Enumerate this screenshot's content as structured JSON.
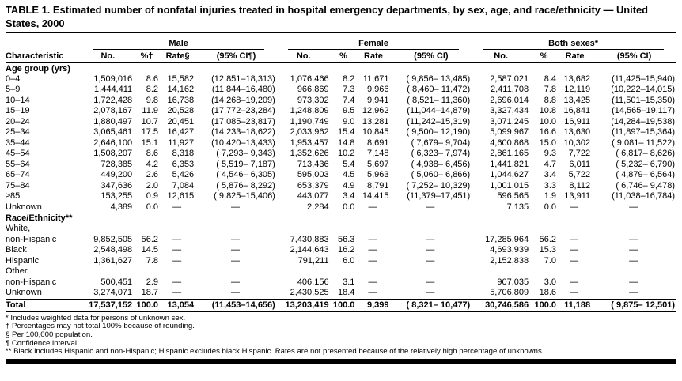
{
  "title": "TABLE 1. Estimated number of nonfatal injuries treated in hospital emergency departments, by sex, age, and race/ethnicity — United States, 2000",
  "columns": {
    "characteristic": "Characteristic",
    "groups": [
      {
        "label": "Male",
        "headers": [
          "No.",
          "%†",
          "Rate§",
          "(95% CI¶)"
        ]
      },
      {
        "label": "Female",
        "headers": [
          "No.",
          "%",
          "Rate",
          "(95% CI)"
        ]
      },
      {
        "label": "Both sexes*",
        "headers": [
          "No.",
          "%",
          "Rate",
          "(95% CI)"
        ]
      }
    ]
  },
  "sections": [
    {
      "label": "Age group (yrs)",
      "rows": [
        {
          "label": "0–4",
          "indent": 1,
          "cells": [
            "1,509,016",
            "8.6",
            "15,582",
            "(12,851–18,313)",
            "1,076,466",
            "8.2",
            "11,671",
            "( 9,856– 13,485)",
            "2,587,021",
            "8.4",
            "13,682",
            "(11,425–15,940)"
          ]
        },
        {
          "label": "5–9",
          "indent": 1,
          "cells": [
            "1,444,411",
            "8.2",
            "14,162",
            "(11,844–16,480)",
            "966,869",
            "7.3",
            "9,966",
            "( 8,460– 11,472)",
            "2,411,708",
            "7.8",
            "12,119",
            "(10,222–14,015)"
          ]
        },
        {
          "label": "10–14",
          "indent": 1,
          "cells": [
            "1,722,428",
            "9.8",
            "16,738",
            "(14,268–19,209)",
            "973,302",
            "7.4",
            "9,941",
            "( 8,521– 11,360)",
            "2,696,014",
            "8.8",
            "13,425",
            "(11,501–15,350)"
          ]
        },
        {
          "label": "15–19",
          "indent": 1,
          "cells": [
            "2,078,167",
            "11.9",
            "20,528",
            "(17,772–23,284)",
            "1,248,809",
            "9.5",
            "12,962",
            "(11,044–14,879)",
            "3,327,434",
            "10.8",
            "16,841",
            "(14,565–19,117)"
          ]
        },
        {
          "label": "20–24",
          "indent": 1,
          "cells": [
            "1,880,497",
            "10.7",
            "20,451",
            "(17,085–23,817)",
            "1,190,749",
            "9.0",
            "13,281",
            "(11,242–15,319)",
            "3,071,245",
            "10.0",
            "16,911",
            "(14,284–19,538)"
          ]
        },
        {
          "label": "25–34",
          "indent": 1,
          "cells": [
            "3,065,461",
            "17.5",
            "16,427",
            "(14,233–18,622)",
            "2,033,962",
            "15.4",
            "10,845",
            "( 9,500– 12,190)",
            "5,099,967",
            "16.6",
            "13,630",
            "(11,897–15,364)"
          ]
        },
        {
          "label": "35–44",
          "indent": 1,
          "cells": [
            "2,646,100",
            "15.1",
            "11,927",
            "(10,420–13,433)",
            "1,953,457",
            "14.8",
            "8,691",
            "( 7,679– 9,704)",
            "4,600,868",
            "15.0",
            "10,302",
            "( 9,081– 11,522)"
          ]
        },
        {
          "label": "45–54",
          "indent": 1,
          "cells": [
            "1,508,207",
            "8.6",
            "8,318",
            "( 7,293– 9,343)",
            "1,352,626",
            "10.2",
            "7,148",
            "( 6,323– 7,974)",
            "2,861,165",
            "9.3",
            "7,722",
            "( 6,817– 8,626)"
          ]
        },
        {
          "label": "55–64",
          "indent": 1,
          "cells": [
            "728,385",
            "4.2",
            "6,353",
            "( 5,519– 7,187)",
            "713,436",
            "5.4",
            "5,697",
            "( 4,938– 6,456)",
            "1,441,821",
            "4.7",
            "6,011",
            "( 5,232– 6,790)"
          ]
        },
        {
          "label": "65–74",
          "indent": 1,
          "cells": [
            "449,200",
            "2.6",
            "5,426",
            "( 4,546– 6,305)",
            "595,003",
            "4.5",
            "5,963",
            "( 5,060– 6,866)",
            "1,044,627",
            "3.4",
            "5,722",
            "( 4,879– 6,564)"
          ]
        },
        {
          "label": "75–84",
          "indent": 1,
          "cells": [
            "347,636",
            "2.0",
            "7,084",
            "( 5,876– 8,292)",
            "653,379",
            "4.9",
            "8,791",
            "( 7,252– 10,329)",
            "1,001,015",
            "3.3",
            "8,112",
            "( 6,746– 9,478)"
          ]
        },
        {
          "label": "≥85",
          "indent": 1,
          "cells": [
            "153,255",
            "0.9",
            "12,615",
            "( 9,825–15,406)",
            "443,077",
            "3.4",
            "14,415",
            "(11,379–17,451)",
            "596,565",
            "1.9",
            "13,911",
            "(11,038–16,784)"
          ]
        },
        {
          "label": "Unknown",
          "indent": 1,
          "cells": [
            "4,389",
            "0.0",
            "—",
            "—",
            "2,284",
            "0.0",
            "—",
            "—",
            "7,135",
            "0.0",
            "—",
            "—"
          ]
        }
      ]
    },
    {
      "label": "Race/Ethnicity**",
      "rows": [
        {
          "label": "White,",
          "indent": 1,
          "cells": null
        },
        {
          "label": "non-Hispanic",
          "indent": 2,
          "cells": [
            "9,852,505",
            "56.2",
            "—",
            "—",
            "7,430,883",
            "56.3",
            "—",
            "—",
            "17,285,964",
            "56.2",
            "—",
            "—"
          ]
        },
        {
          "label": "Black",
          "indent": 1,
          "cells": [
            "2,548,498",
            "14.5",
            "—",
            "—",
            "2,144,643",
            "16.2",
            "—",
            "—",
            "4,693,939",
            "15.3",
            "—",
            "—"
          ]
        },
        {
          "label": "Hispanic",
          "indent": 1,
          "cells": [
            "1,361,627",
            "7.8",
            "—",
            "—",
            "791,211",
            "6.0",
            "—",
            "—",
            "2,152,838",
            "7.0",
            "—",
            "—"
          ]
        },
        {
          "label": "Other,",
          "indent": 1,
          "cells": null
        },
        {
          "label": "non-Hispanic",
          "indent": 2,
          "cells": [
            "500,451",
            "2.9",
            "—",
            "—",
            "406,156",
            "3.1",
            "—",
            "—",
            "907,035",
            "3.0",
            "—",
            "—"
          ]
        },
        {
          "label": "Unknown",
          "indent": 1,
          "cells": [
            "3,274,071",
            "18.7",
            "—",
            "—",
            "2,430,525",
            "18.4",
            "—",
            "—",
            "5,706,809",
            "18.6",
            "—",
            "—"
          ]
        }
      ]
    }
  ],
  "total": {
    "label": "Total",
    "indent": 0,
    "cells": [
      "17,537,152",
      "100.0",
      "13,054",
      "(11,453–14,656)",
      "13,203,419",
      "100.0",
      "9,399",
      "( 8,321– 10,477)",
      "30,746,586",
      "100.0",
      "11,188",
      "( 9,875– 12,501)"
    ]
  },
  "footnotes": [
    "* Includes weighted data for persons of unknown sex.",
    "† Percentages may not total 100% because of rounding.",
    "§ Per 100,000 population.",
    "¶ Confidence interval.",
    "** Black includes Hispanic and non-Hispanic; Hispanic excludes black Hispanic. Rates are not presented because of the relatively high percentage of unknowns."
  ]
}
